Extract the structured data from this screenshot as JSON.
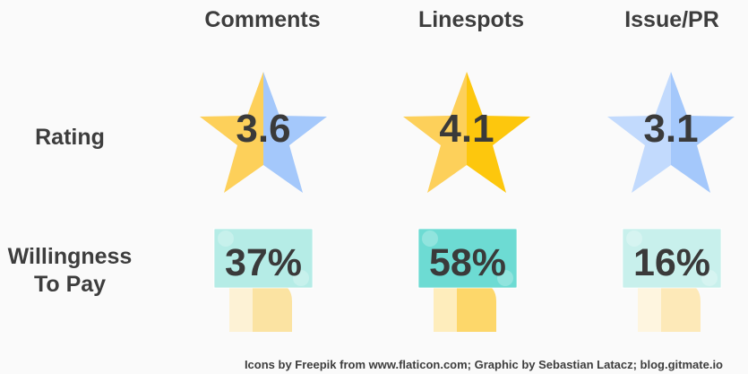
{
  "columns": [
    "Comments",
    "Linespots",
    "Issue/PR"
  ],
  "rows": {
    "rating_label": "Rating",
    "willingness_label_line1": "Willingness",
    "willingness_label_line2": "To Pay"
  },
  "ratings": [
    {
      "value": "3.6",
      "left_color": "#fdd05a",
      "right_color": "#a4c8fb"
    },
    {
      "value": "4.1",
      "left_color": "#fdd05a",
      "right_color": "#fdc70d"
    },
    {
      "value": "3.1",
      "left_color": "#c2dafd",
      "right_color": "#a4c8fb"
    }
  ],
  "willingness": [
    {
      "value": "37%",
      "bill_color": "#b5ece6",
      "hand_color": "#fbe3a2"
    },
    {
      "value": "58%",
      "bill_color": "#6ddbd3",
      "hand_color": "#fdd76a"
    },
    {
      "value": "16%",
      "bill_color": "#c8f0ec",
      "hand_color": "#fde9b8"
    }
  ],
  "icons": {
    "rating": "star-icon",
    "willingness": "hand-holding-money-icon"
  },
  "credit": "Icons by Freepik from www.flaticon.com; Graphic by Sebastian Latacz; blog.gitmate.io"
}
